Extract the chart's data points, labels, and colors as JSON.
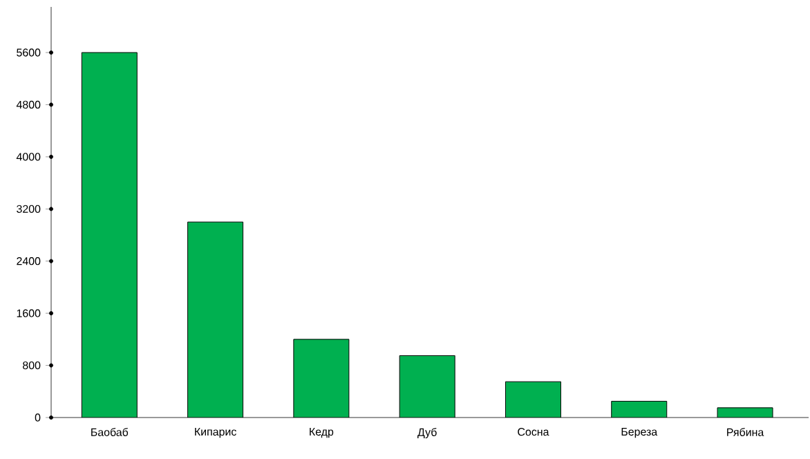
{
  "chart_data": {
    "type": "bar",
    "categories": [
      "Баобаб",
      "Кипарис",
      "Кедр",
      "Дуб",
      "Сосна",
      "Береза",
      "Рябина"
    ],
    "values": [
      5600,
      3000,
      1200,
      950,
      550,
      250,
      150
    ],
    "color": "#00b050",
    "ylim": [
      0,
      6300
    ],
    "yticks": [
      0,
      800,
      1600,
      2400,
      3200,
      4000,
      4800,
      5600
    ],
    "grid": false
  }
}
